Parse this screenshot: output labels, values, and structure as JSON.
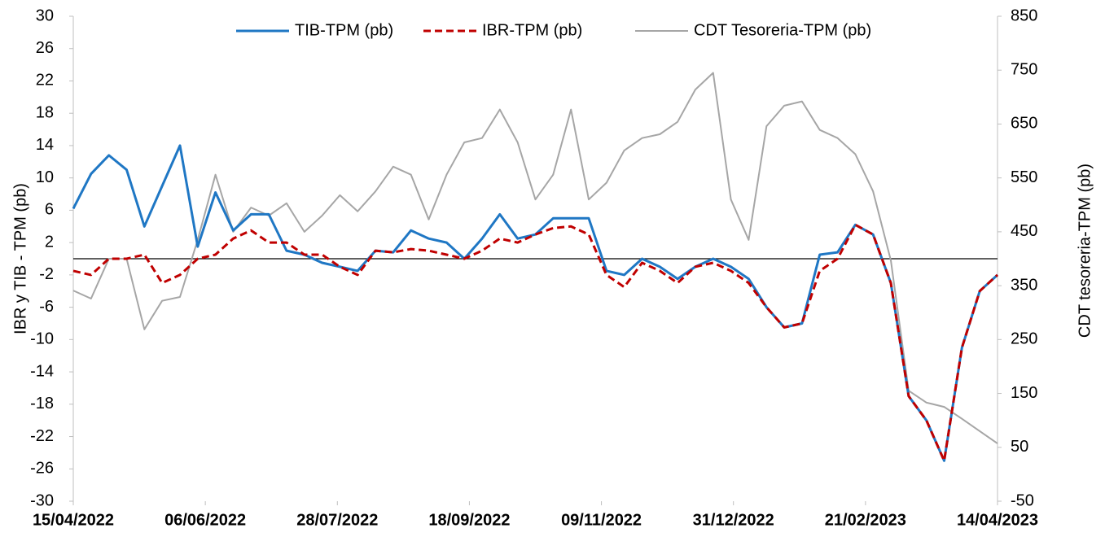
{
  "chart_data": {
    "type": "line",
    "y_label": "IBR y TIB - TPM (pb)",
    "y2_label": "CDT tesoreria-TPM (pb)",
    "x": [
      "15/04/2022",
      "22/04/2022",
      "29/04/2022",
      "06/05/2022",
      "13/05/2022",
      "20/05/2022",
      "27/05/2022",
      "03/06/2022",
      "10/06/2022",
      "17/06/2022",
      "24/06/2022",
      "01/07/2022",
      "08/07/2022",
      "15/07/2022",
      "22/07/2022",
      "29/07/2022",
      "05/08/2022",
      "12/08/2022",
      "19/08/2022",
      "26/08/2022",
      "02/09/2022",
      "09/09/2022",
      "16/09/2022",
      "23/09/2022",
      "30/09/2022",
      "07/10/2022",
      "14/10/2022",
      "21/10/2022",
      "28/10/2022",
      "04/11/2022",
      "11/11/2022",
      "18/11/2022",
      "25/11/2022",
      "02/12/2022",
      "09/12/2022",
      "16/12/2022",
      "23/12/2022",
      "30/12/2022",
      "06/01/2023",
      "13/01/2023",
      "20/01/2023",
      "27/01/2023",
      "03/02/2023",
      "10/02/2023",
      "17/02/2023",
      "24/02/2023",
      "03/03/2023",
      "10/03/2023",
      "17/03/2023",
      "24/03/2023",
      "31/03/2023",
      "07/04/2023",
      "14/04/2023"
    ],
    "xlim": [
      "15/04/2022",
      "14/04/2023"
    ],
    "xticks": [
      "15/04/2022",
      "06/06/2022",
      "28/07/2022",
      "18/09/2022",
      "09/11/2022",
      "31/12/2022",
      "21/02/2023",
      "14/04/2023"
    ],
    "ylim": [
      -30,
      30
    ],
    "yticks": [
      -30,
      -26,
      -22,
      -18,
      -14,
      -10,
      -6,
      -2,
      2,
      6,
      10,
      14,
      18,
      22,
      26,
      30
    ],
    "y2lim": [
      -50,
      850
    ],
    "y2ticks": [
      -50,
      50,
      150,
      250,
      350,
      450,
      550,
      650,
      750,
      850
    ],
    "legend": "top",
    "series": [
      {
        "name": "TIB-TPM (pb)",
        "color": "#1f77c4",
        "style": "solid",
        "values": [
          6.2,
          10.5,
          12.8,
          11,
          4,
          9,
          14,
          1.5,
          8.2,
          3.5,
          5.5,
          5.5,
          1,
          0.5,
          -0.5,
          -1,
          -1.5,
          1,
          0.8,
          3.5,
          2.5,
          2,
          0,
          2.5,
          5.5,
          2.5,
          3,
          5,
          5,
          5,
          -1.5,
          -2,
          0,
          -1,
          -2.5,
          -1,
          0,
          -1,
          -2.5,
          -6,
          -8.5,
          -8,
          0.5,
          0.8,
          4.2,
          3,
          -3,
          -17,
          -20,
          -25,
          -11,
          -4,
          -2
        ]
      },
      {
        "name": "IBR-TPM (pb)",
        "color": "#c00000",
        "style": "dashed",
        "values": [
          -1.5,
          -2,
          0,
          0,
          0.5,
          -3,
          -2,
          0,
          0.5,
          2.5,
          3.5,
          2,
          2,
          0.5,
          0.5,
          -1,
          -2,
          1,
          0.8,
          1.2,
          1,
          0.5,
          0,
          1,
          2.5,
          2,
          3,
          3.8,
          4,
          3,
          -2,
          -3.5,
          -0.5,
          -1.5,
          -3,
          -1,
          -0.5,
          -1.5,
          -3,
          -6,
          -8.5,
          -8,
          -1.5,
          0,
          4.2,
          3,
          -3,
          -17,
          -20,
          -25,
          -11,
          -4,
          -2
        ]
      },
      {
        "name": "CDT Tesoreria-TPM (pb)",
        "color": "#a6a6a6",
        "style": "solid",
        "axis": "y2",
        "values": [
          341,
          326,
          400,
          400,
          269,
          322,
          329,
          435,
          556,
          450,
          495,
          480,
          503,
          450,
          480,
          518,
          488,
          525,
          571,
          556,
          473,
          556,
          616,
          624,
          677,
          616,
          510,
          556,
          677,
          510,
          541,
          601,
          624,
          631,
          654,
          714,
          745,
          510,
          435,
          646,
          684,
          692,
          639,
          624,
          594,
          525,
          397,
          155,
          133,
          125,
          103,
          80,
          57
        ]
      }
    ]
  }
}
